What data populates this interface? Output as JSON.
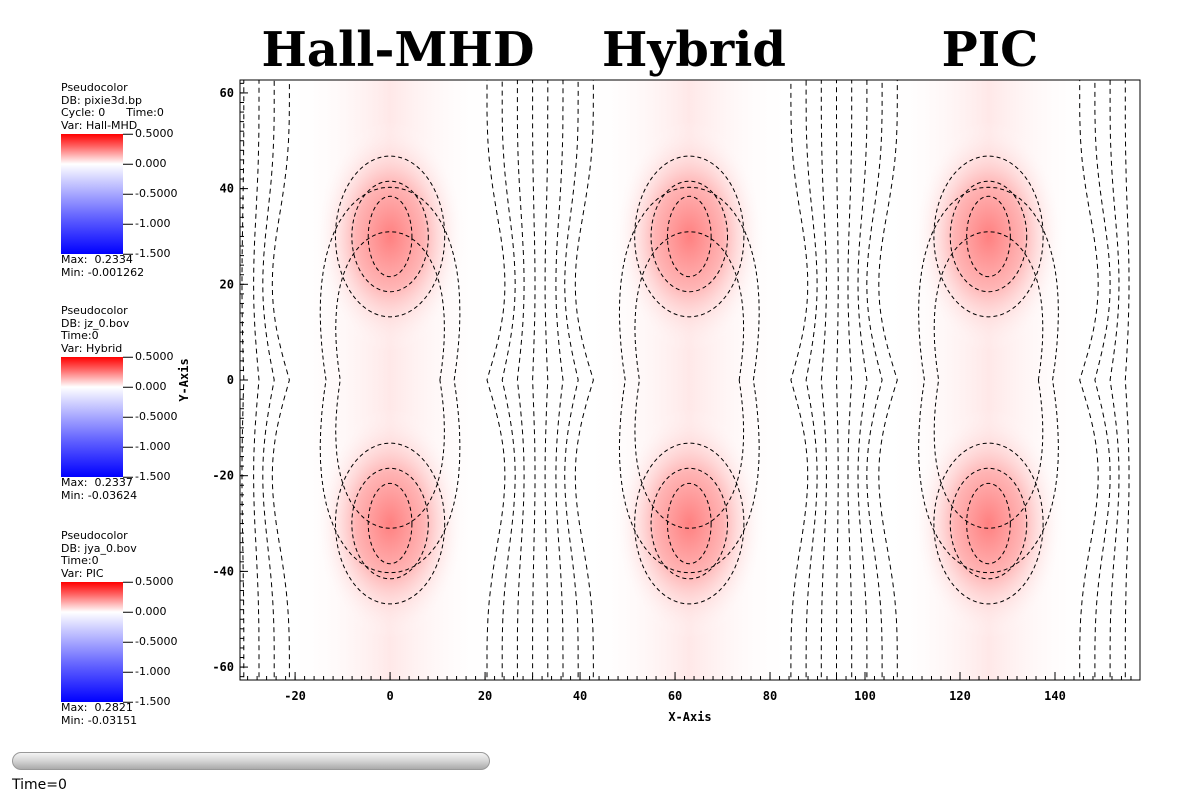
{
  "titles": [
    "Hall-MHD",
    "Hybrid",
    "PIC"
  ],
  "legends": [
    {
      "lines": [
        "Pseudocolor",
        "DB: pixie3d.bp",
        "Cycle: 0      Time:0",
        "Var: Hall-MHD"
      ],
      "ticks": [
        "0.5000",
        "0.000",
        "-0.5000",
        "-1.000",
        "-1.500"
      ],
      "max": "Max:  0.2334",
      "min": "Min: -0.001262"
    },
    {
      "lines": [
        "Pseudocolor",
        "DB: jz_0.bov",
        "Time:0",
        "Var: Hybrid"
      ],
      "ticks": [
        "0.5000",
        "0.000",
        "-0.5000",
        "-1.000",
        "-1.500"
      ],
      "max": "Max:  0.2337",
      "min": "Min: -0.03624"
    },
    {
      "lines": [
        "Pseudocolor",
        "DB: jya_0.bov",
        "Time:0",
        "Var: PIC"
      ],
      "ticks": [
        "0.5000",
        "0.000",
        "-0.5000",
        "-1.000",
        "-1.500"
      ],
      "max": "Max:  0.2821",
      "min": "Min: -0.03151"
    }
  ],
  "time_label": "Time=0",
  "chart_data": {
    "type": "heatmap",
    "xlabel": "X-Axis",
    "ylabel": "Y-Axis",
    "xlim": [
      -31.6,
      157.9
    ],
    "ylim": [
      -62.7,
      62.7
    ],
    "xticks": [
      -20,
      0,
      20,
      40,
      60,
      80,
      100,
      120,
      140
    ],
    "yticks": [
      -60,
      -40,
      -20,
      0,
      20,
      40,
      60
    ],
    "colormap_range": [
      -1.5,
      0.5
    ],
    "panels": [
      {
        "name": "Hall-MHD",
        "center_x": 0,
        "peaks_y": [
          30,
          -30
        ],
        "max": 0.2334
      },
      {
        "name": "Hybrid",
        "center_x": 63,
        "peaks_y": [
          30,
          -30
        ],
        "max": 0.2337
      },
      {
        "name": "PIC",
        "center_x": 126,
        "peaks_y": [
          30,
          -30
        ],
        "max": 0.2821
      }
    ],
    "contours": "dashed black flux lines"
  }
}
